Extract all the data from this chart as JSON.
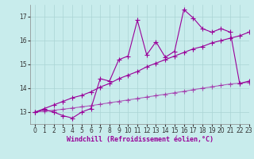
{
  "xlabel": "Windchill (Refroidissement éolien,°C)",
  "bg_color": "#c8ecec",
  "line_color": "#990099",
  "grid_color": "#aad4d4",
  "x_values": [
    0,
    1,
    2,
    3,
    4,
    5,
    6,
    7,
    8,
    9,
    10,
    11,
    12,
    13,
    14,
    15,
    16,
    17,
    18,
    19,
    20,
    21,
    22,
    23
  ],
  "y_data": [
    13.0,
    13.1,
    13.0,
    12.85,
    12.75,
    13.0,
    13.15,
    14.4,
    14.3,
    15.2,
    15.35,
    16.85,
    15.4,
    15.95,
    15.3,
    15.55,
    17.3,
    16.95,
    16.5,
    16.35,
    16.5,
    16.35,
    14.2,
    14.3
  ],
  "y_trend_upper": [
    13.0,
    13.15,
    13.3,
    13.45,
    13.6,
    13.7,
    13.85,
    14.05,
    14.2,
    14.4,
    14.55,
    14.7,
    14.9,
    15.05,
    15.2,
    15.35,
    15.5,
    15.65,
    15.75,
    15.9,
    16.0,
    16.1,
    16.2,
    16.35
  ],
  "y_trend_lower": [
    13.0,
    13.04,
    13.08,
    13.12,
    13.17,
    13.22,
    13.27,
    13.33,
    13.39,
    13.45,
    13.51,
    13.57,
    13.63,
    13.69,
    13.75,
    13.81,
    13.87,
    13.94,
    14.0,
    14.06,
    14.12,
    14.18,
    14.21,
    14.25
  ],
  "ylim": [
    12.5,
    17.5
  ],
  "xlim": [
    -0.5,
    23
  ],
  "yticks": [
    13,
    14,
    15,
    16,
    17
  ],
  "xticks": [
    0,
    1,
    2,
    3,
    4,
    5,
    6,
    7,
    8,
    9,
    10,
    11,
    12,
    13,
    14,
    15,
    16,
    17,
    18,
    19,
    20,
    21,
    22,
    23
  ],
  "marker": "+",
  "marker_size": 4.0,
  "line_width": 0.8,
  "tick_fontsize": 5.5,
  "label_fontsize": 6.0
}
